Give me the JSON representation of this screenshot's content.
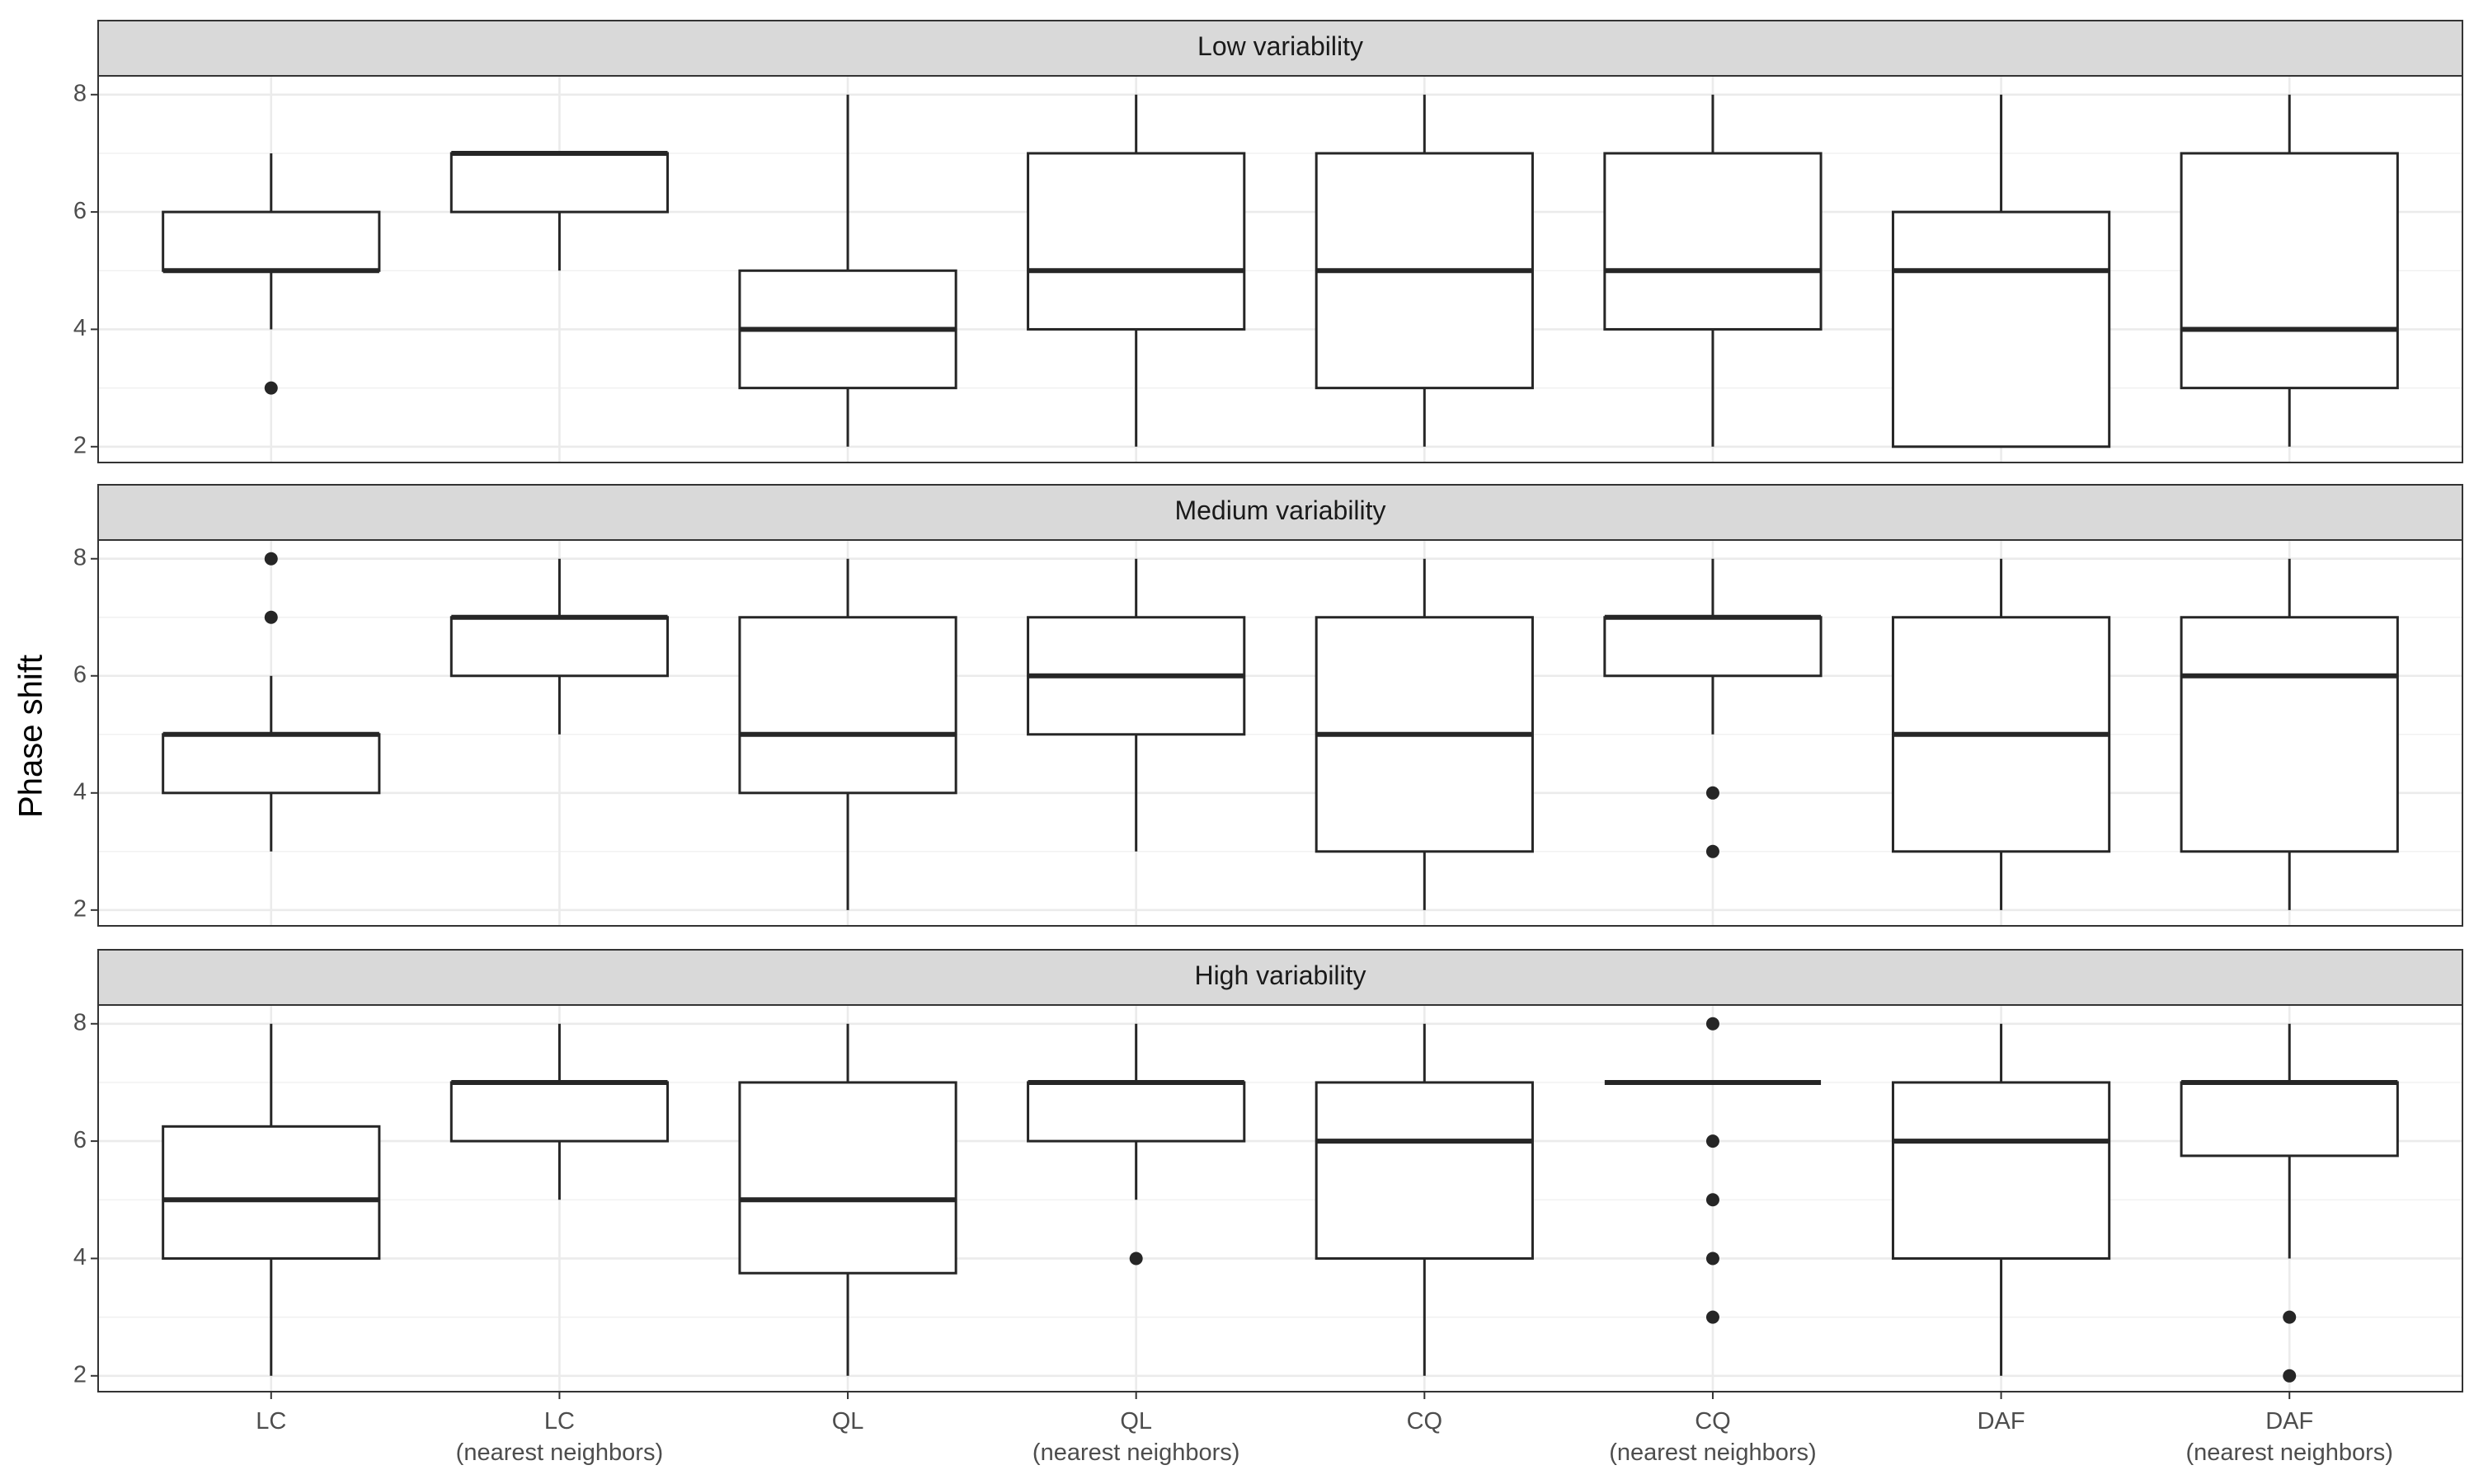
{
  "chart_data": {
    "type": "box",
    "y_label": "Phase shift",
    "categories": [
      "LC",
      "LC\n(nearest neighbors)",
      "QL",
      "QL\n(nearest neighbors)",
      "CQ",
      "CQ\n(nearest neighbors)",
      "DAF",
      "DAF\n(nearest neighbors)"
    ],
    "ylim": [
      1.73,
      8.32
    ],
    "yticks": [
      2,
      4,
      6,
      8
    ],
    "grid": true,
    "color": "#262626",
    "facets": [
      {
        "title": "Low variability",
        "boxes": [
          {
            "min": 4,
            "q1": 5,
            "median": 5,
            "q3": 6,
            "max": 7,
            "outliers": [
              3
            ]
          },
          {
            "min": 5,
            "q1": 6,
            "median": 7,
            "q3": 7,
            "max": 7,
            "outliers": []
          },
          {
            "min": 2,
            "q1": 3,
            "median": 4,
            "q3": 5,
            "max": 8,
            "outliers": []
          },
          {
            "min": 2,
            "q1": 4,
            "median": 5,
            "q3": 7,
            "max": 8,
            "outliers": []
          },
          {
            "min": 2,
            "q1": 3,
            "median": 5,
            "q3": 7,
            "max": 8,
            "outliers": []
          },
          {
            "min": 2,
            "q1": 4,
            "median": 5,
            "q3": 7,
            "max": 8,
            "outliers": []
          },
          {
            "min": 2,
            "q1": 2,
            "median": 5,
            "q3": 6,
            "max": 8,
            "outliers": []
          },
          {
            "min": 2,
            "q1": 3,
            "median": 4,
            "q3": 7,
            "max": 8,
            "outliers": []
          }
        ]
      },
      {
        "title": "Medium  variability",
        "boxes": [
          {
            "min": 3,
            "q1": 4,
            "median": 5,
            "q3": 5,
            "max": 6,
            "outliers": [
              7,
              8
            ]
          },
          {
            "min": 5,
            "q1": 6,
            "median": 7,
            "q3": 7,
            "max": 8,
            "outliers": []
          },
          {
            "min": 2,
            "q1": 4,
            "median": 5,
            "q3": 7,
            "max": 8,
            "outliers": []
          },
          {
            "min": 3,
            "q1": 5,
            "median": 6,
            "q3": 7,
            "max": 8,
            "outliers": []
          },
          {
            "min": 2,
            "q1": 3,
            "median": 5,
            "q3": 7,
            "max": 8,
            "outliers": []
          },
          {
            "min": 5,
            "q1": 6,
            "median": 7,
            "q3": 7,
            "max": 8,
            "outliers": [
              4,
              3
            ]
          },
          {
            "min": 2,
            "q1": 3,
            "median": 5,
            "q3": 7,
            "max": 8,
            "outliers": []
          },
          {
            "min": 2,
            "q1": 3,
            "median": 6,
            "q3": 7,
            "max": 8,
            "outliers": []
          }
        ]
      },
      {
        "title": "High variability",
        "boxes": [
          {
            "min": 2,
            "q1": 4,
            "median": 5,
            "q3": 6.25,
            "max": 8,
            "outliers": []
          },
          {
            "min": 5,
            "q1": 6,
            "median": 7,
            "q3": 7,
            "max": 8,
            "outliers": []
          },
          {
            "min": 2,
            "q1": 3.75,
            "median": 5,
            "q3": 7,
            "max": 8,
            "outliers": []
          },
          {
            "min": 5,
            "q1": 6,
            "median": 7,
            "q3": 7,
            "max": 8,
            "outliers": [
              4
            ]
          },
          {
            "min": 2,
            "q1": 4,
            "median": 6,
            "q3": 7,
            "max": 8,
            "outliers": []
          },
          {
            "min": 7,
            "q1": 7,
            "median": 7,
            "q3": 7,
            "max": 7,
            "outliers": [
              8,
              6,
              5,
              4,
              3
            ]
          },
          {
            "min": 2,
            "q1": 4,
            "median": 6,
            "q3": 7,
            "max": 8,
            "outliers": []
          },
          {
            "min": 4,
            "q1": 5.75,
            "median": 7,
            "q3": 7,
            "max": 8,
            "outliers": [
              3,
              2
            ]
          }
        ]
      }
    ]
  }
}
